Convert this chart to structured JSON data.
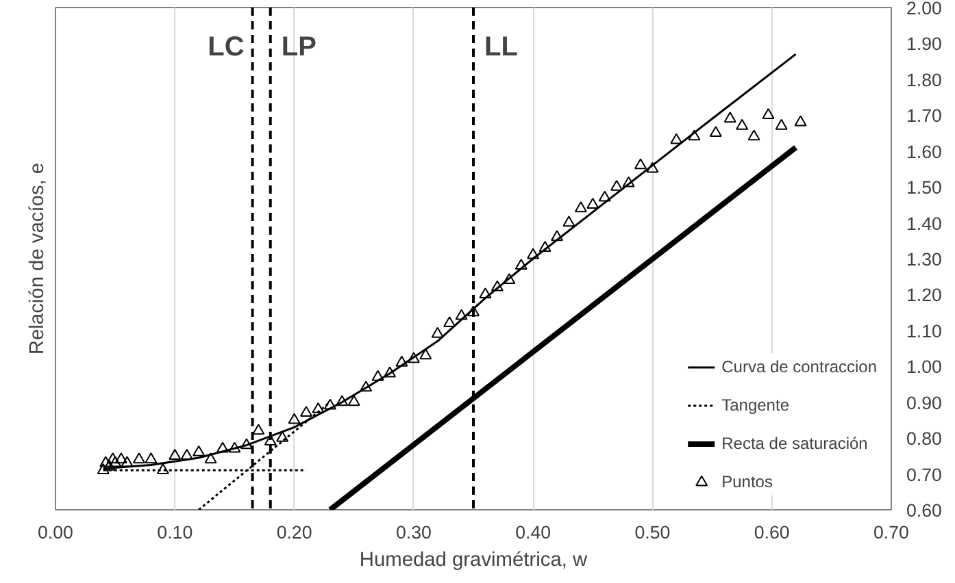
{
  "chart_data": {
    "type": "line",
    "xlabel": "Humedad gravimétrica, w",
    "ylabel": "Relación de vacíos, e",
    "xlim": [
      0,
      0.7
    ],
    "ylim": [
      0.6,
      2.0
    ],
    "xticks": [
      {
        "value": 0,
        "label": "0.00"
      },
      {
        "value": 0.1,
        "label": "0.10"
      },
      {
        "value": 0.2,
        "label": "0.20"
      },
      {
        "value": 0.3,
        "label": "0.30"
      },
      {
        "value": 0.4,
        "label": "0.40"
      },
      {
        "value": 0.5,
        "label": "0.50"
      },
      {
        "value": 0.6,
        "label": "0.60"
      },
      {
        "value": 0.7,
        "label": "0.70"
      }
    ],
    "yticks": [
      {
        "value": 0.6,
        "label": "0.60"
      },
      {
        "value": 0.7,
        "label": "0.70"
      },
      {
        "value": 0.8,
        "label": "0.80"
      },
      {
        "value": 0.9,
        "label": "0.90"
      },
      {
        "value": 1.0,
        "label": "1.00"
      },
      {
        "value": 1.1,
        "label": "1.10"
      },
      {
        "value": 1.2,
        "label": "1.20"
      },
      {
        "value": 1.3,
        "label": "1.30"
      },
      {
        "value": 1.4,
        "label": "1.40"
      },
      {
        "value": 1.5,
        "label": "1.50"
      },
      {
        "value": 1.6,
        "label": "1.60"
      },
      {
        "value": 1.7,
        "label": "1.70"
      },
      {
        "value": 1.8,
        "label": "1.80"
      },
      {
        "value": 1.9,
        "label": "1.90"
      },
      {
        "value": 2.0,
        "label": "2.00"
      }
    ],
    "grid": true,
    "legend": "bottom right",
    "series": [
      {
        "name": "Curva de contraccion",
        "color": "#000000",
        "line_style": "solid",
        "x": [
          0.04,
          0.08,
          0.12,
          0.16,
          0.2,
          0.24,
          0.28,
          0.32,
          0.36,
          0.4,
          0.45,
          0.5,
          0.55,
          0.62
        ],
        "values": [
          0.715,
          0.725,
          0.745,
          0.78,
          0.83,
          0.9,
          0.98,
          1.07,
          1.19,
          1.3,
          1.43,
          1.56,
          1.69,
          1.87
        ]
      },
      {
        "name": "Tangente",
        "color": "#000000",
        "line_style": "dotted",
        "x": [
          0.12,
          0.23,
          null,
          0.04,
          0.21
        ],
        "values": [
          0.6,
          0.9,
          null,
          0.71,
          0.71
        ]
      },
      {
        "name": "Recta de saturación",
        "color": "#000000",
        "line_style": "solid",
        "x": [
          0.23,
          0.62
        ],
        "values": [
          0.6,
          1.61
        ]
      },
      {
        "name": "Puntos",
        "type": "scatter",
        "marker": "triangle",
        "color": "#000000",
        "x": [
          0.04,
          0.042,
          0.045,
          0.048,
          0.05,
          0.055,
          0.06,
          0.07,
          0.08,
          0.09,
          0.1,
          0.11,
          0.12,
          0.13,
          0.14,
          0.15,
          0.16,
          0.17,
          0.18,
          0.19,
          0.2,
          0.21,
          0.22,
          0.23,
          0.24,
          0.25,
          0.26,
          0.27,
          0.28,
          0.29,
          0.3,
          0.31,
          0.32,
          0.33,
          0.34,
          0.35,
          0.36,
          0.37,
          0.38,
          0.39,
          0.4,
          0.41,
          0.42,
          0.43,
          0.44,
          0.45,
          0.46,
          0.47,
          0.48,
          0.49,
          0.5,
          0.52,
          0.535,
          0.553,
          0.565,
          0.575,
          0.585,
          0.597,
          0.608,
          0.624
        ],
        "values": [
          0.71,
          0.73,
          0.72,
          0.74,
          0.73,
          0.74,
          0.73,
          0.74,
          0.74,
          0.71,
          0.75,
          0.75,
          0.76,
          0.74,
          0.77,
          0.77,
          0.78,
          0.82,
          0.79,
          0.8,
          0.85,
          0.87,
          0.88,
          0.89,
          0.9,
          0.9,
          0.94,
          0.97,
          0.98,
          1.01,
          1.02,
          1.03,
          1.09,
          1.12,
          1.14,
          1.15,
          1.2,
          1.22,
          1.24,
          1.28,
          1.31,
          1.33,
          1.36,
          1.4,
          1.44,
          1.45,
          1.47,
          1.5,
          1.51,
          1.56,
          1.55,
          1.63,
          1.64,
          1.65,
          1.69,
          1.67,
          1.64,
          1.7,
          1.67,
          1.68
        ]
      }
    ],
    "ref_lines": [
      {
        "axis": "x",
        "value": 0.165,
        "label": "LC",
        "line_style": "dashed"
      },
      {
        "axis": "x",
        "value": 0.18,
        "label": "LP",
        "line_style": "dashed"
      },
      {
        "axis": "x",
        "value": 0.35,
        "label": "LL",
        "line_style": "dashed"
      }
    ]
  }
}
